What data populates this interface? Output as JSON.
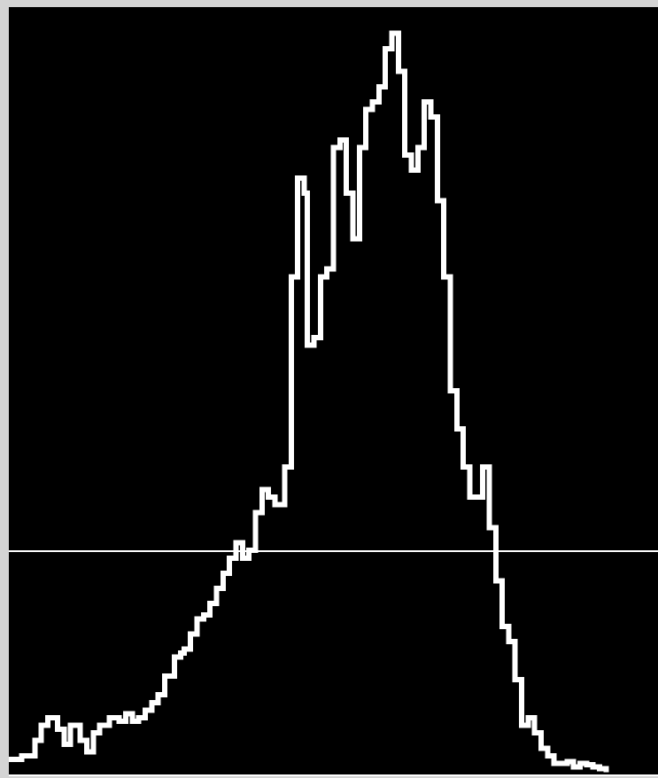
{
  "window": {
    "background_color": "#d4d4d4",
    "plot_background_color": "#000000",
    "trace_color": "#ffffff"
  },
  "chart_data": {
    "type": "line",
    "title": "",
    "xlabel": "",
    "ylabel": "",
    "grid": false,
    "legend": "none",
    "xlim": [
      0,
      100
    ],
    "ylim": [
      0,
      100
    ],
    "threshold_y": 28.9,
    "series": [
      {
        "color": "#ffffff",
        "points": [
          [
            0,
            1.5
          ],
          [
            2,
            2
          ],
          [
            4,
            4
          ],
          [
            5,
            6
          ],
          [
            6,
            7
          ],
          [
            7.5,
            5.5
          ],
          [
            8.5,
            3.5
          ],
          [
            9.5,
            6
          ],
          [
            11,
            4
          ],
          [
            12,
            2.5
          ],
          [
            13,
            5
          ],
          [
            14,
            6
          ],
          [
            15.5,
            7
          ],
          [
            17,
            6.5
          ],
          [
            18,
            7.5
          ],
          [
            19,
            6.5
          ],
          [
            20,
            7
          ],
          [
            21,
            8
          ],
          [
            22,
            9
          ],
          [
            23,
            10
          ],
          [
            24,
            12.5
          ],
          [
            25.5,
            15
          ],
          [
            26.5,
            15.5
          ],
          [
            27,
            16
          ],
          [
            28,
            18
          ],
          [
            29,
            20
          ],
          [
            30,
            20.5
          ],
          [
            31,
            22
          ],
          [
            32,
            24
          ],
          [
            33,
            26
          ],
          [
            34,
            28
          ],
          [
            35,
            30
          ],
          [
            36,
            28
          ],
          [
            37,
            29
          ],
          [
            38,
            34
          ],
          [
            39,
            37
          ],
          [
            40,
            36
          ],
          [
            41,
            35
          ],
          [
            42,
            35
          ],
          [
            42.5,
            40
          ],
          [
            43.5,
            65
          ],
          [
            44.5,
            78
          ],
          [
            45.5,
            76
          ],
          [
            46,
            56
          ],
          [
            47,
            57
          ],
          [
            48,
            65
          ],
          [
            49,
            66
          ],
          [
            50,
            82
          ],
          [
            51,
            83
          ],
          [
            52,
            76
          ],
          [
            53,
            70
          ],
          [
            54,
            82
          ],
          [
            55,
            87
          ],
          [
            56,
            88
          ],
          [
            57,
            90
          ],
          [
            58,
            95
          ],
          [
            59,
            97
          ],
          [
            60,
            92
          ],
          [
            61,
            81
          ],
          [
            62,
            79
          ],
          [
            63,
            82
          ],
          [
            64,
            88
          ],
          [
            65,
            86
          ],
          [
            66,
            75
          ],
          [
            67,
            65
          ],
          [
            68,
            50
          ],
          [
            69,
            45
          ],
          [
            70,
            40
          ],
          [
            71,
            36
          ],
          [
            72,
            36
          ],
          [
            73,
            40
          ],
          [
            74,
            32
          ],
          [
            75,
            25
          ],
          [
            76,
            19
          ],
          [
            77,
            17
          ],
          [
            78,
            12
          ],
          [
            79,
            6
          ],
          [
            80,
            7
          ],
          [
            81,
            5
          ],
          [
            82,
            3
          ],
          [
            83,
            2
          ],
          [
            84,
            1
          ],
          [
            85,
            1
          ],
          [
            86,
            1.2
          ],
          [
            87,
            0.5
          ],
          [
            88,
            1
          ],
          [
            89,
            0.8
          ],
          [
            90,
            0.5
          ],
          [
            91,
            0.3
          ],
          [
            92,
            0.2
          ]
        ]
      }
    ]
  }
}
